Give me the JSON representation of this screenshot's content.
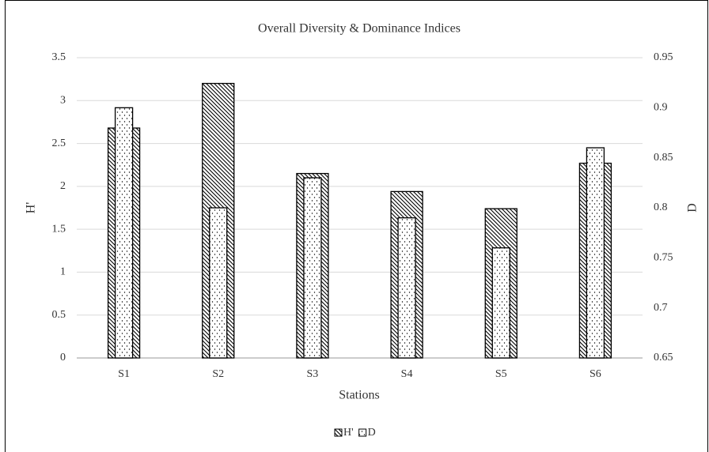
{
  "chart_data": {
    "type": "bar",
    "title": "Overall Diversity & Dominance Indices",
    "x_label": "Stations",
    "y_label": "H'",
    "y2_label": "D",
    "categories": [
      "S1",
      "S2",
      "S3",
      "S4",
      "S5",
      "S6"
    ],
    "series": [
      {
        "name": "H'",
        "values": [
          2.68,
          3.2,
          2.15,
          1.94,
          1.74,
          2.27
        ]
      },
      {
        "name": "D",
        "axis": "y2",
        "values": [
          0.9,
          0.8,
          0.83,
          0.79,
          0.76,
          0.86
        ]
      }
    ],
    "ylim": [
      0,
      3.5
    ],
    "yticks": [
      0,
      0.5,
      1,
      1.5,
      2,
      2.5,
      3,
      3.5
    ],
    "y2lim": [
      0.65,
      0.95
    ],
    "y2ticks": [
      0.65,
      0.7,
      0.75,
      0.8,
      0.85,
      0.9,
      0.95
    ],
    "grid": true,
    "legend": "bottom"
  }
}
